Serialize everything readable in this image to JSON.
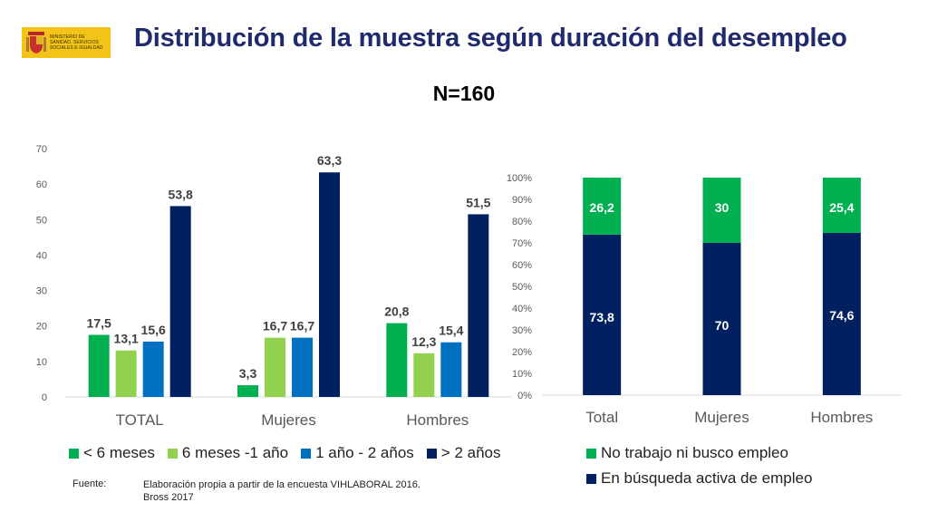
{
  "header": {
    "logo_text": "MINISTERIO DE SANIDAD, SERVICIOS SOCIALES E IGUALDAD",
    "title": "Distribución de la muestra según duración del desempleo",
    "subtitle": "N=160"
  },
  "chart_data": [
    {
      "type": "bar",
      "categories": [
        "TOTAL",
        "Mujeres",
        "Hombres"
      ],
      "ylim": [
        0,
        70
      ],
      "yticks": [
        0,
        10,
        20,
        30,
        40,
        50,
        60,
        70
      ],
      "grid": false,
      "legend_position": "bottom",
      "series": [
        {
          "name": "< 6 meses",
          "color": "#00b050",
          "values": [
            17.5,
            3.3,
            20.8
          ],
          "labels": [
            "17,5",
            "3,3",
            "20,8"
          ]
        },
        {
          "name": "6 meses -1 año",
          "color": "#92d050",
          "values": [
            13.1,
            16.7,
            12.3
          ],
          "labels": [
            "13,1",
            "16,7",
            "12,3"
          ]
        },
        {
          "name": "1 año - 2 años",
          "color": "#0070c0",
          "values": [
            15.6,
            16.7,
            15.4
          ],
          "labels": [
            "15,6",
            "16,7",
            "15,4"
          ]
        },
        {
          "name": "> 2 años",
          "color": "#002060",
          "values": [
            53.8,
            63.3,
            51.5
          ],
          "labels": [
            "53,8",
            "63,3",
            "51,5"
          ]
        }
      ]
    },
    {
      "type": "bar",
      "stacked": true,
      "percent": true,
      "categories": [
        "Total",
        "Mujeres",
        "Hombres"
      ],
      "ylim": [
        0,
        100
      ],
      "yticks": [
        "0%",
        "10%",
        "20%",
        "30%",
        "40%",
        "50%",
        "60%",
        "70%",
        "80%",
        "90%",
        "100%"
      ],
      "grid": false,
      "legend_position": "bottom",
      "series": [
        {
          "name": "En búsqueda activa de empleo",
          "color": "#002060",
          "values": [
            73.8,
            70,
            74.6
          ],
          "labels": [
            "73,8",
            "70",
            "74,6"
          ]
        },
        {
          "name": "No trabajo ni busco empleo",
          "color": "#00b050",
          "values": [
            26.2,
            30,
            25.4
          ],
          "labels": [
            "26,2",
            "30",
            "25,4"
          ]
        }
      ]
    }
  ],
  "legend_left": [
    {
      "label": "< 6 meses",
      "color": "#00b050"
    },
    {
      "label": "6 meses -1 año",
      "color": "#92d050"
    },
    {
      "label": "1 año - 2 años",
      "color": "#0070c0"
    },
    {
      "label": "> 2 años",
      "color": "#002060"
    }
  ],
  "legend_right": [
    {
      "label": "No trabajo ni busco empleo",
      "color": "#00b050"
    },
    {
      "label": "En búsqueda activa de empleo",
      "color": "#002060"
    }
  ],
  "source": {
    "label": "Fuente:",
    "line1": "Elaboración propia a partir de la encuesta  VIHLABORAL 2016.",
    "line2": "Bross 2017"
  }
}
